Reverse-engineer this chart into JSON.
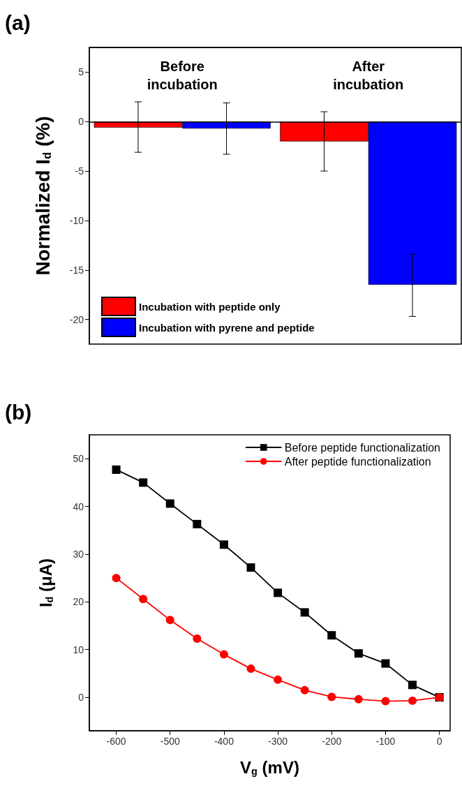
{
  "chart_data": [
    {
      "type": "bar",
      "title": "(a)",
      "ylabel": "Normalized I$_{d}$ (%)",
      "categories": [
        "Before\nincubation",
        "After\nincubation"
      ],
      "series": [
        {
          "name": "Incubation with peptide only",
          "color": "#ff0000",
          "values": [
            -0.6,
            -2.0
          ],
          "errors": [
            [
              -3.1,
              2.0
            ],
            [
              -5.0,
              1.0
            ]
          ]
        },
        {
          "name": "Incubation with pyrene and peptide",
          "color": "#0000ff",
          "values": [
            -0.7,
            -16.5
          ],
          "errors": [
            [
              -3.3,
              1.9
            ],
            [
              -19.7,
              -13.4
            ]
          ]
        }
      ],
      "ylim": [
        -22.5,
        7.5
      ],
      "yticks": [
        -20,
        -15,
        -10,
        -5,
        0,
        5
      ],
      "ref_lines": [
        {
          "axis": "y",
          "value": 0,
          "color": "#000000"
        }
      ],
      "grid": false,
      "legend": "bottom left"
    },
    {
      "type": "line",
      "title": "(b)",
      "xlabel": "V$_{g}$ (mV)",
      "ylabel": "I$_{d}$ (μA)",
      "x": [
        -600,
        -550,
        -500,
        -450,
        -400,
        -350,
        -300,
        -250,
        -200,
        -150,
        -100,
        -50,
        0
      ],
      "series": [
        {
          "name": "Before peptide functionalization",
          "color": "#000000",
          "marker": "square",
          "values": [
            47.7,
            45,
            40.6,
            36.3,
            32,
            27.2,
            21.9,
            17.8,
            13,
            9.2,
            7.1,
            2.6,
            0
          ]
        },
        {
          "name": "After peptide functionalization",
          "color": "#ff0000",
          "marker": "circle",
          "values": [
            25,
            20.6,
            16.2,
            12.3,
            9,
            6,
            3.7,
            1.5,
            0.1,
            -0.4,
            -0.8,
            -0.7,
            0
          ]
        }
      ],
      "xlim": [
        -650,
        20
      ],
      "xticks": [
        -600,
        -500,
        -400,
        -300,
        -200,
        -100,
        0
      ],
      "ylim": [
        -7,
        55
      ],
      "yticks": [
        0,
        10,
        20,
        30,
        40,
        50
      ],
      "grid": false,
      "legend": "top right",
      "line_style": "solid"
    }
  ]
}
